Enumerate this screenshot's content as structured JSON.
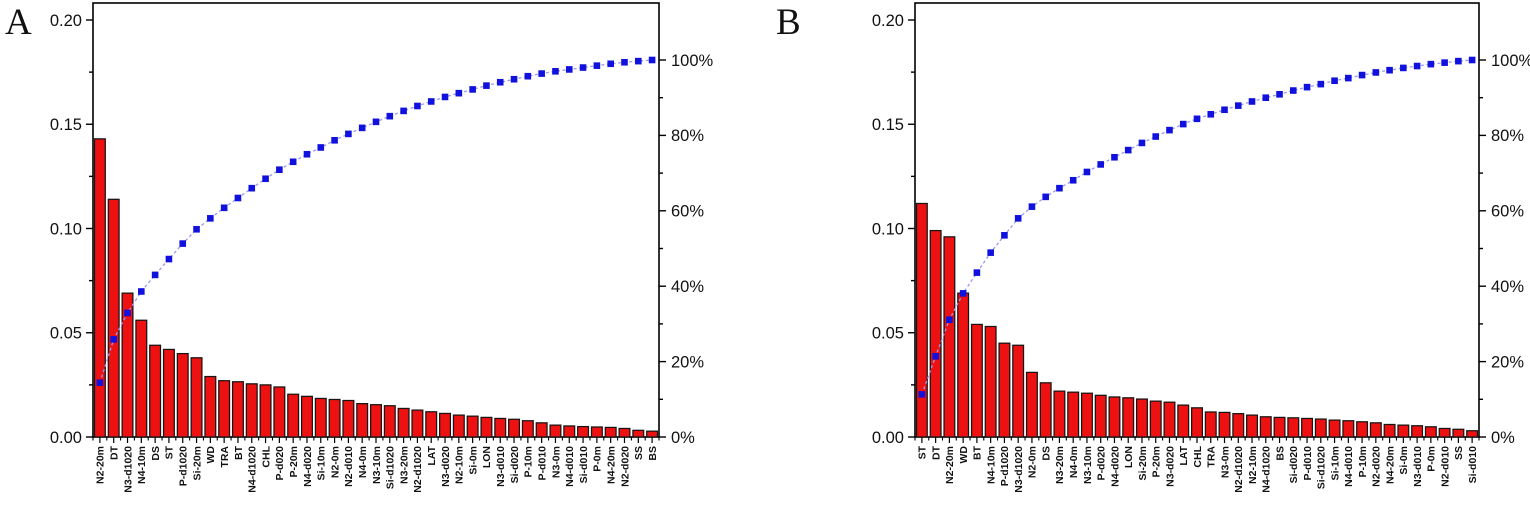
{
  "figure": {
    "background": "#ffffff",
    "description": "Two Pareto charts of predictor relative importance with cumulative percentage curves"
  },
  "chart_data": [
    {
      "type": "bar",
      "subtype": "pareto",
      "panel_label": "A",
      "grid": false,
      "legend": "none",
      "bar_color": "#ee1111",
      "bar_edge_color": "#151515",
      "line_color": "#9898f2",
      "marker_color": "#1111dd",
      "left_axis": {
        "range": [
          0,
          0.2
        ],
        "tick_values": [
          0,
          0.05,
          0.1,
          0.15,
          0.2
        ],
        "tick_labels": [
          "0.00",
          "0.05",
          "0.10",
          "0.15",
          "0.20"
        ],
        "minor_step": 0.025
      },
      "right_axis": {
        "range_pct": [
          0,
          100
        ],
        "tick_values": [
          0,
          20,
          40,
          60,
          80,
          100
        ],
        "tick_labels": [
          "0%",
          "20%",
          "40%",
          "60%",
          "80%",
          "100%"
        ],
        "minor_step_pct": 10
      },
      "categories": [
        "N2-20m",
        "DT",
        "N3-d1020",
        "N4-10m",
        "DS",
        "ST",
        "P-d1020",
        "Si-20m",
        "WD",
        "TRA",
        "BT",
        "N4-d1020",
        "CHL",
        "P-d020",
        "P-20m",
        "N4-d020",
        "Si-10m",
        "N2-0m",
        "N2-d010",
        "N4-0m",
        "N3-10m",
        "Si-d1020",
        "N3-20m",
        "N2-d1020",
        "LAT",
        "N3-d020",
        "N2-10m",
        "Si-0m",
        "LON",
        "N3-d010",
        "Si-d020",
        "P-10m",
        "P-d010",
        "N3-0m",
        "N4-d010",
        "Si-d010",
        "P-0m",
        "N4-20m",
        "N2-d020",
        "SS",
        "BS"
      ],
      "values": [
        0.143,
        0.114,
        0.069,
        0.056,
        0.044,
        0.042,
        0.04,
        0.038,
        0.029,
        0.027,
        0.0265,
        0.0255,
        0.025,
        0.024,
        0.0205,
        0.0195,
        0.0185,
        0.018,
        0.0175,
        0.016,
        0.0155,
        0.015,
        0.0137,
        0.0129,
        0.0121,
        0.0113,
        0.0105,
        0.01,
        0.0094,
        0.0089,
        0.0085,
        0.0078,
        0.0068,
        0.0057,
        0.0053,
        0.005,
        0.0048,
        0.0046,
        0.0041,
        0.0032,
        0.0028
      ],
      "cumulative_pct": [
        14.4,
        25.9,
        32.9,
        38.6,
        43.0,
        47.2,
        51.3,
        55.1,
        58.0,
        60.8,
        63.4,
        66.0,
        68.5,
        70.9,
        73.0,
        75.0,
        76.8,
        78.7,
        80.4,
        82.0,
        83.6,
        85.1,
        86.5,
        87.8,
        89.0,
        90.2,
        91.2,
        92.2,
        93.2,
        94.1,
        94.9,
        95.7,
        96.4,
        97.0,
        97.5,
        98.0,
        98.5,
        99.0,
        99.4,
        99.7,
        100.0
      ]
    },
    {
      "type": "bar",
      "subtype": "pareto",
      "panel_label": "B",
      "grid": false,
      "legend": "none",
      "bar_color": "#ee1111",
      "bar_edge_color": "#151515",
      "line_color": "#9898f2",
      "marker_color": "#1111dd",
      "left_axis": {
        "range": [
          0,
          0.2
        ],
        "tick_values": [
          0,
          0.05,
          0.1,
          0.15,
          0.2
        ],
        "tick_labels": [
          "0.00",
          "0.05",
          "0.10",
          "0.15",
          "0.20"
        ],
        "minor_step": 0.025
      },
      "right_axis": {
        "range_pct": [
          0,
          100
        ],
        "tick_values": [
          0,
          20,
          40,
          60,
          80,
          100
        ],
        "tick_labels": [
          "0%",
          "20%",
          "40%",
          "60%",
          "80%",
          "100%"
        ],
        "minor_step_pct": 10
      },
      "categories": [
        "ST",
        "DT",
        "N2-20m",
        "WD",
        "BT",
        "N4-10m",
        "P-d1020",
        "N3-d1020",
        "N2-0m",
        "DS",
        "N3-20m",
        "N4-0m",
        "N3-10m",
        "P-d020",
        "N4-d020",
        "LON",
        "Si-20m",
        "P-20m",
        "N3-d020",
        "LAT",
        "CHL",
        "TRA",
        "N3-0m",
        "N2-d1020",
        "N2-10m",
        "N4-d1020",
        "BS",
        "Si-d020",
        "P-d010",
        "Si-d1020",
        "Si-10m",
        "N4-d010",
        "P-10m",
        "N2-d020",
        "N4-20m",
        "Si-0m",
        "N3-d010",
        "P-0m",
        "N2-d010",
        "SS",
        "Si-d010"
      ],
      "values": [
        0.112,
        0.099,
        0.096,
        0.069,
        0.054,
        0.053,
        0.045,
        0.044,
        0.031,
        0.026,
        0.022,
        0.0215,
        0.021,
        0.02,
        0.0192,
        0.0188,
        0.0182,
        0.0172,
        0.0167,
        0.0153,
        0.014,
        0.012,
        0.0118,
        0.0112,
        0.0105,
        0.0097,
        0.0094,
        0.0092,
        0.0089,
        0.0086,
        0.0081,
        0.0078,
        0.0073,
        0.0068,
        0.006,
        0.0057,
        0.0054,
        0.0049,
        0.0041,
        0.0037,
        0.003
      ],
      "cumulative_pct": [
        11.3,
        21.4,
        31.1,
        38.1,
        43.6,
        48.9,
        53.5,
        58.0,
        61.1,
        63.7,
        66.0,
        68.1,
        70.3,
        72.3,
        74.2,
        76.1,
        78.0,
        79.7,
        81.4,
        83.0,
        84.4,
        85.6,
        86.8,
        87.9,
        89.0,
        90.0,
        90.9,
        91.9,
        92.8,
        93.6,
        94.5,
        95.2,
        96.0,
        96.7,
        97.3,
        97.9,
        98.4,
        98.9,
        99.3,
        99.7,
        100.0
      ]
    }
  ]
}
